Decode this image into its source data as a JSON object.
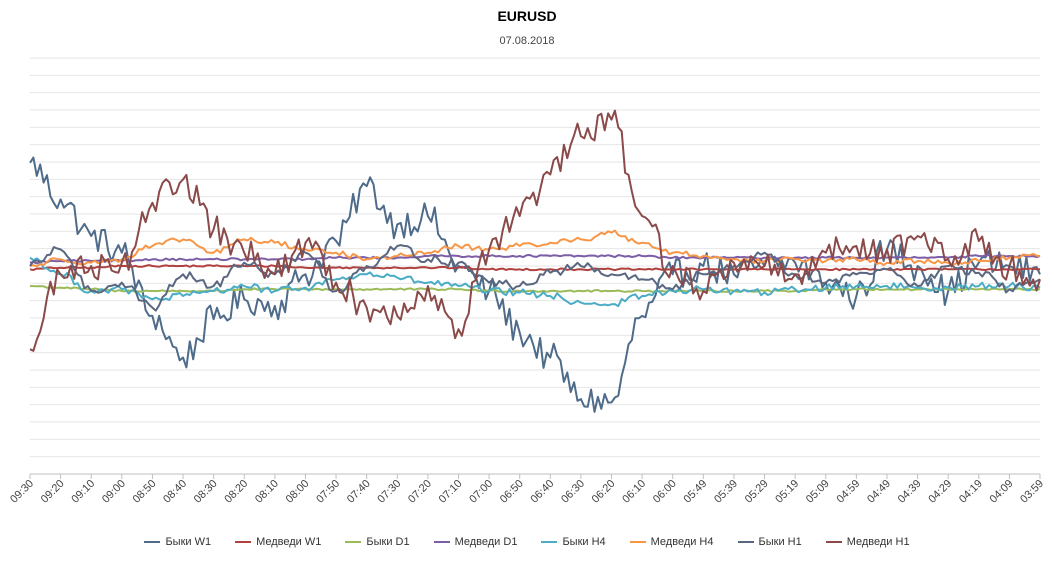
{
  "chart_data": {
    "type": "line",
    "title": "EURUSD",
    "subtitle": "07.08.2018",
    "xlabel": "",
    "ylabel": "",
    "grid": true,
    "legend_position": "bottom",
    "categories": [
      "09:30",
      "09:20",
      "09:10",
      "09:00",
      "08:50",
      "08:40",
      "08:30",
      "08:20",
      "08:10",
      "08:00",
      "07:50",
      "07:40",
      "07:30",
      "07:20",
      "07:10",
      "07:00",
      "06:50",
      "06:40",
      "06:30",
      "06:20",
      "06:10",
      "06:00",
      "05:49",
      "05:39",
      "05:29",
      "05:19",
      "05:09",
      "04:59",
      "04:49",
      "04:39",
      "04:29",
      "04:19",
      "04:09",
      "03:59"
    ],
    "series": [
      {
        "name": "Быки W1",
        "color": "#4e6b8a",
        "values": [
          0.72,
          0.5,
          0.28,
          0.18,
          -0.2,
          -0.45,
          -0.22,
          -0.1,
          -0.14,
          0.05,
          0.25,
          0.58,
          0.35,
          0.4,
          0.1,
          -0.05,
          -0.3,
          -0.45,
          -0.7,
          -0.72,
          -0.2,
          0.05,
          0.1,
          0.05,
          0.1,
          0.12,
          0.0,
          -0.08,
          0.2,
          0.1,
          -0.05,
          0.12,
          0.1,
          0.05
        ]
      },
      {
        "name": "Медведи W1",
        "color": "#b0413e",
        "values": [
          0.08,
          0.09,
          0.09,
          0.1,
          0.1,
          0.1,
          0.1,
          0.1,
          0.1,
          0.09,
          0.09,
          0.09,
          0.09,
          0.09,
          0.09,
          0.08,
          0.08,
          0.08,
          0.08,
          0.08,
          0.08,
          0.08,
          0.08,
          0.08,
          0.08,
          0.08,
          0.08,
          0.08,
          0.08,
          0.08,
          0.08,
          0.08,
          0.08,
          0.08
        ]
      },
      {
        "name": "Быки D1",
        "color": "#9bbb59",
        "values": [
          -0.02,
          -0.03,
          -0.04,
          -0.05,
          -0.05,
          -0.05,
          -0.05,
          -0.04,
          -0.04,
          -0.04,
          -0.04,
          -0.04,
          -0.04,
          -0.04,
          -0.04,
          -0.05,
          -0.05,
          -0.05,
          -0.05,
          -0.05,
          -0.05,
          -0.05,
          -0.05,
          -0.05,
          -0.05,
          -0.05,
          -0.04,
          -0.04,
          -0.04,
          -0.04,
          -0.04,
          -0.04,
          -0.04,
          -0.04
        ]
      },
      {
        "name": "Медведи D1",
        "color": "#7c5ea7",
        "values": [
          0.12,
          0.13,
          0.13,
          0.13,
          0.14,
          0.14,
          0.14,
          0.14,
          0.14,
          0.14,
          0.15,
          0.15,
          0.15,
          0.16,
          0.16,
          0.16,
          0.16,
          0.16,
          0.16,
          0.16,
          0.16,
          0.15,
          0.15,
          0.15,
          0.15,
          0.15,
          0.15,
          0.15,
          0.15,
          0.15,
          0.15,
          0.16,
          0.16,
          0.16
        ]
      },
      {
        "name": "Быки H4",
        "color": "#4bacc6",
        "values": [
          0.15,
          0.05,
          -0.05,
          -0.04,
          -0.1,
          -0.08,
          -0.05,
          -0.02,
          -0.05,
          -0.03,
          0.02,
          0.05,
          0.03,
          0.0,
          -0.02,
          -0.05,
          -0.06,
          -0.08,
          -0.12,
          -0.13,
          -0.08,
          -0.05,
          -0.04,
          -0.05,
          -0.06,
          -0.04,
          -0.03,
          -0.02,
          -0.02,
          -0.03,
          -0.03,
          -0.02,
          -0.02,
          -0.03
        ]
      },
      {
        "name": "Медведи H4",
        "color": "#f79646",
        "values": [
          0.1,
          0.14,
          0.12,
          0.14,
          0.22,
          0.26,
          0.18,
          0.26,
          0.24,
          0.2,
          0.18,
          0.14,
          0.16,
          0.18,
          0.22,
          0.2,
          0.22,
          0.24,
          0.26,
          0.3,
          0.24,
          0.18,
          0.16,
          0.14,
          0.13,
          0.14,
          0.13,
          0.14,
          0.12,
          0.13,
          0.12,
          0.13,
          0.15,
          0.16
        ]
      },
      {
        "name": "Быки H1",
        "color": "#5a6780",
        "values": [
          0.1,
          0.2,
          -0.05,
          0.0,
          -0.15,
          0.05,
          -0.02,
          0.12,
          0.05,
          0.18,
          -0.05,
          0.1,
          0.22,
          0.14,
          0.12,
          0.0,
          -0.02,
          0.06,
          0.1,
          0.05,
          0.02,
          -0.04,
          0.05,
          0.1,
          0.18,
          0.05,
          0.0,
          0.05,
          0.08,
          -0.02,
          0.1,
          0.06,
          -0.04,
          0.02
        ]
      },
      {
        "name": "Медведи H1",
        "color": "#8b4a4a",
        "values": [
          -0.4,
          0.05,
          0.1,
          0.12,
          0.48,
          0.62,
          0.32,
          0.18,
          0.05,
          0.24,
          0.0,
          -0.15,
          -0.2,
          -0.02,
          -0.28,
          0.2,
          0.4,
          0.65,
          0.88,
          0.98,
          0.4,
          0.1,
          -0.05,
          0.12,
          0.1,
          0.05,
          0.18,
          0.22,
          0.2,
          0.28,
          0.14,
          0.25,
          0.1,
          0.02
        ]
      }
    ],
    "ylim": [
      -1.15,
      1.35
    ]
  }
}
